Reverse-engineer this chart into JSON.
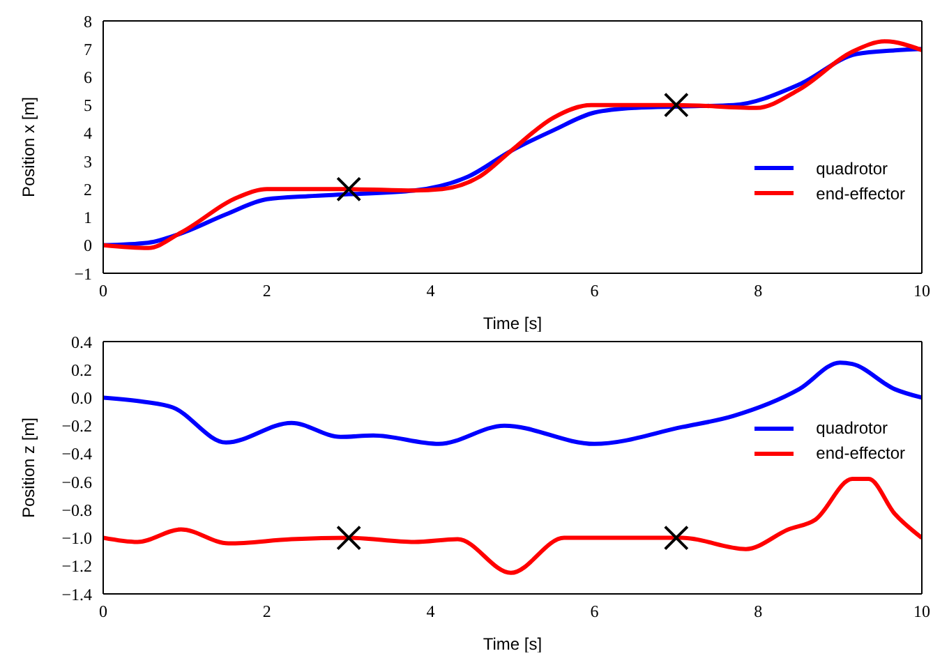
{
  "chart_data": [
    {
      "type": "line",
      "xlabel": "Time [s]",
      "ylabel": "Position x [m]",
      "xlim": [
        0,
        10
      ],
      "xticks": [
        0,
        2,
        4,
        6,
        8,
        10
      ],
      "ylim": [
        -1,
        8
      ],
      "yticks": [
        {
          "value": -1,
          "label": "−1"
        },
        0,
        1,
        2,
        3,
        4,
        5,
        6,
        7,
        8
      ],
      "grid": false,
      "legend": "right",
      "marker": "none",
      "line_style": "solid",
      "series": [
        {
          "name": "quadrotor",
          "color": "#0000ff",
          "x": [
            0,
            0.55,
            0.95,
            1.5,
            2,
            2.5,
            3,
            3.8,
            4.46,
            4.98,
            5.5,
            6,
            6.5,
            7.07,
            7.7,
            8.5,
            9.2,
            9.67,
            10
          ],
          "values": [
            0,
            0.09,
            0.42,
            1.1,
            1.64,
            1.75,
            1.82,
            1.95,
            2.45,
            3.36,
            4.1,
            4.73,
            4.9,
            4.95,
            5.0,
            5.73,
            6.82,
            6.95,
            7.0
          ]
        },
        {
          "name": "end-effector",
          "color": "#ff0000",
          "x": [
            0,
            0.55,
            0.95,
            1.66,
            2,
            3,
            3.8,
            4.14,
            4.6,
            4.98,
            5.5,
            5.96,
            6.4,
            7,
            7.98,
            8.5,
            9.15,
            9.55,
            10
          ],
          "values": [
            0,
            -0.1,
            0.45,
            1.73,
            2.0,
            2.0,
            1.95,
            2.0,
            2.45,
            3.36,
            4.55,
            5.0,
            5.0,
            5.0,
            4.9,
            5.55,
            6.9,
            7.27,
            6.96
          ]
        },
        {
          "type": "scatter",
          "color": "#000000",
          "marker": "cross",
          "x": [
            3,
            7
          ],
          "values": [
            2,
            5
          ]
        }
      ]
    },
    {
      "type": "line",
      "xlabel": "Time [s]",
      "ylabel": "Position z [m]",
      "xlim": [
        0,
        10
      ],
      "xticks": [
        0,
        2,
        4,
        6,
        8,
        10
      ],
      "ylim": [
        -1.4,
        0.4
      ],
      "yticks": [
        {
          "value": -1.4,
          "label": "−1.4"
        },
        {
          "value": -1.2,
          "label": "−1.2"
        },
        {
          "value": -1.0,
          "label": "−1.0"
        },
        {
          "value": -0.8,
          "label": "−0.8"
        },
        {
          "value": -0.6,
          "label": "−0.6"
        },
        {
          "value": -0.4,
          "label": "−0.4"
        },
        {
          "value": -0.2,
          "label": "−0.2"
        },
        {
          "value": 0,
          "label": "0.0"
        },
        0.2,
        0.4
      ],
      "grid": false,
      "legend": "top right",
      "marker": "none",
      "line_style": "solid",
      "series": [
        {
          "name": "quadrotor",
          "color": "#0000ff",
          "x": [
            0,
            0.5,
            0.85,
            1.5,
            2.3,
            2.9,
            3.3,
            4.1,
            4.9,
            6.0,
            7.07,
            7.7,
            8.5,
            9.0,
            9.15,
            9.67,
            10
          ],
          "values": [
            0,
            -0.03,
            -0.07,
            -0.32,
            -0.18,
            -0.28,
            -0.27,
            -0.33,
            -0.2,
            -0.33,
            -0.21,
            -0.13,
            0.06,
            0.25,
            0.24,
            0.06,
            0
          ]
        },
        {
          "name": "end-effector",
          "color": "#ff0000",
          "x": [
            0,
            0.42,
            0.95,
            1.53,
            2.3,
            3,
            3.8,
            4.33,
            4.98,
            5.63,
            7.07,
            7.85,
            8.37,
            8.7,
            9.15,
            9.35,
            9.67,
            10
          ],
          "values": [
            -1.0,
            -1.03,
            -0.94,
            -1.04,
            -1.01,
            -1.0,
            -1.03,
            -1.01,
            -1.25,
            -1.0,
            -1.0,
            -1.08,
            -0.94,
            -0.87,
            -0.58,
            -0.58,
            -0.83,
            -1.0
          ]
        },
        {
          "type": "scatter",
          "color": "#000000",
          "marker": "cross",
          "x": [
            3,
            7
          ],
          "values": [
            -1,
            -1
          ]
        }
      ]
    }
  ]
}
